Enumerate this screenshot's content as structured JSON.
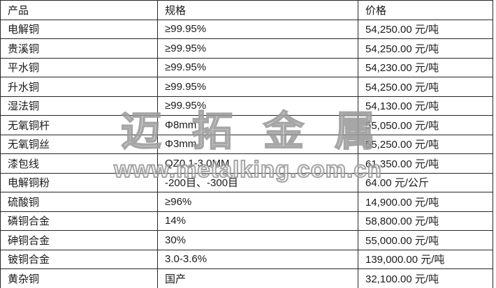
{
  "watermark": {
    "brand": "迈拓金属",
    "url": "www.metalking.com.cn"
  },
  "table": {
    "columns": [
      {
        "key": "product",
        "label": "产品"
      },
      {
        "key": "spec",
        "label": "规格"
      },
      {
        "key": "price",
        "label": "价格"
      }
    ],
    "rows": [
      {
        "product": "电解铜",
        "spec": "≥99.95%",
        "price": "54,250.00 元/吨"
      },
      {
        "product": "贵溪铜",
        "spec": "≥99.95%",
        "price": "54,250.00 元/吨"
      },
      {
        "product": "平水铜",
        "spec": "≥99.95%",
        "price": "54,230.00 元/吨"
      },
      {
        "product": "升水铜",
        "spec": "≥99.95%",
        "price": "54,250.00 元/吨"
      },
      {
        "product": "湿法铜",
        "spec": "≥99.95%",
        "price": "54,130.00 元/吨"
      },
      {
        "product": "无氧铜杆",
        "spec": "Φ8mm",
        "price": "55,050.00 元/吨"
      },
      {
        "product": "无氧铜丝",
        "spec": "Φ3mm",
        "price": "55,250.00 元/吨"
      },
      {
        "product": "漆包线",
        "spec": "QZ0.1-3.0MM",
        "price": "61,350.00 元/吨"
      },
      {
        "product": "电解铜粉",
        "spec": "-200目、-300目",
        "price": "64.00 元/公斤"
      },
      {
        "product": "硫酸铜",
        "spec": "≥96%",
        "price": "14,900.00 元/吨"
      },
      {
        "product": "磷铜合金",
        "spec": "14%",
        "price": "58,800.00 元/吨"
      },
      {
        "product": "砷铜合金",
        "spec": "30%",
        "price": "55,000.00 元/吨"
      },
      {
        "product": "铍铜合金",
        "spec": "3.0-3.6%",
        "price": "139,000.00 元/吨"
      },
      {
        "product": "黄杂铜",
        "spec": "国产",
        "price": "32,100.00 元/吨"
      }
    ],
    "colors": {
      "border": "#262626",
      "text": "#1a1a1a",
      "background": "#ffffff",
      "watermark_gray": "#919191"
    }
  }
}
